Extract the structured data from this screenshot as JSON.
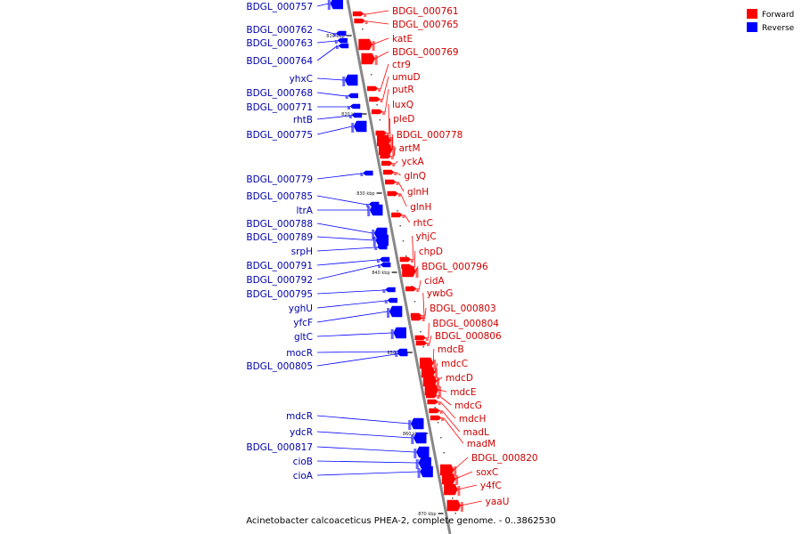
{
  "caption": "Acinetobacter calcoaceticus PHEA-2, complete genome. - 0..3862530",
  "legend": {
    "forward_label": "Forward",
    "reverse_label": "Reverse",
    "forward_color": "#ff0000",
    "reverse_color": "#0000ff"
  },
  "colors": {
    "backbone": "#888888",
    "forward_text": "#cc0000",
    "reverse_text": "#0000aa",
    "forward_line": "#ff0000",
    "reverse_line": "#0000ff"
  },
  "ticks": [
    "810 kbp",
    "820 kbp",
    "830 kbp",
    "840 kbp",
    "850 kbp",
    "860 kbp",
    "870 kbp"
  ],
  "reverse_genes": [
    "BDGL_000757",
    "BDGL_000762",
    "BDGL_000763",
    "BDGL_000764",
    "yhxC",
    "BDGL_000768",
    "BDGL_000771",
    "rhtB",
    "BDGL_000775",
    "BDGL_000779",
    "BDGL_000785",
    "ltrA",
    "BDGL_000788",
    "BDGL_000789",
    "srpH",
    "BDGL_000791",
    "BDGL_000792",
    "BDGL_000795",
    "yghU",
    "yfcF",
    "gltC",
    "mocR",
    "BDGL_000805",
    "mdcR",
    "ydcR",
    "BDGL_000817",
    "cioB",
    "cioA"
  ],
  "forward_genes": [
    "BDGL_000761",
    "BDGL_000765",
    "katE",
    "BDGL_000769",
    "ctr9",
    "umuD",
    "putR",
    "luxQ",
    "pleD",
    "BDGL_000778",
    "artM",
    "yckA",
    "glnQ",
    "glnH",
    "glnH",
    "rhtC",
    "yhjC",
    "chpD",
    "BDGL_000796",
    "cidA",
    "ywbG",
    "BDGL_000803",
    "BDGL_000804",
    "BDGL_000806",
    "mdcB",
    "mdcC",
    "mdcD",
    "mdcE",
    "mdcG",
    "mdcH",
    "madL",
    "madM",
    "BDGL_000820",
    "soxC",
    "y4fC",
    "yaaU"
  ]
}
